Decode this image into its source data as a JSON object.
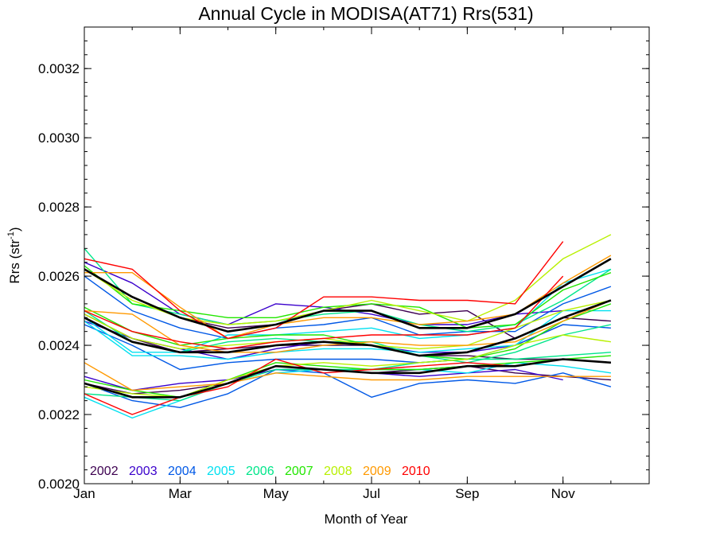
{
  "chart_data": {
    "type": "line",
    "title": "Annual Cycle in MODISA(AT71) Rrs(531)",
    "xlabel": "Month of Year",
    "ylabel_main": "Rrs (str",
    "ylabel_sup": "-1",
    "ylabel_close": ")",
    "xlim": [
      1,
      12.8
    ],
    "ylim": [
      0.002,
      0.00332
    ],
    "x_ticks": [
      {
        "value": 1,
        "label": "Jan"
      },
      {
        "value": 3,
        "label": "Mar"
      },
      {
        "value": 5,
        "label": "May"
      },
      {
        "value": 7,
        "label": "Jul"
      },
      {
        "value": 9,
        "label": "Sep"
      },
      {
        "value": 11,
        "label": "Nov"
      }
    ],
    "y_ticks": [
      {
        "value": 0.002,
        "label": "0.0020"
      },
      {
        "value": 0.0022,
        "label": "0.0022"
      },
      {
        "value": 0.0024,
        "label": "0.0024"
      },
      {
        "value": 0.0026,
        "label": "0.0026"
      },
      {
        "value": 0.0028,
        "label": "0.0028"
      },
      {
        "value": 0.003,
        "label": "0.0030"
      },
      {
        "value": 0.0032,
        "label": "0.0032"
      }
    ],
    "x": [
      1,
      2,
      3,
      4,
      5,
      6,
      7,
      8,
      9,
      10,
      11,
      12
    ],
    "legend": [
      {
        "label": "2002",
        "color": "#3d0050"
      },
      {
        "label": "2003",
        "color": "#3a00cc"
      },
      {
        "label": "2004",
        "color": "#0058e6"
      },
      {
        "label": "2005",
        "color": "#00e0f0"
      },
      {
        "label": "2006",
        "color": "#00e68a"
      },
      {
        "label": "2007",
        "color": "#22e600"
      },
      {
        "label": "2008",
        "color": "#b8f000"
      },
      {
        "label": "2009",
        "color": "#ff9900"
      },
      {
        "label": "2010",
        "color": "#ff0000"
      }
    ],
    "series": [
      {
        "group": "2002",
        "color": "#3d0050",
        "values": [
          0.00262,
          0.00254,
          0.00248,
          0.00245,
          0.00246,
          0.0025,
          0.00252,
          0.00249,
          0.0025,
          0.00242,
          0.00248,
          0.00247
        ]
      },
      {
        "group": "2002",
        "color": "#3d0050",
        "values": [
          0.00249,
          0.00242,
          0.00238,
          0.00239,
          0.0024,
          0.0024,
          0.0024,
          0.00237,
          0.00237,
          0.00236,
          0.00236,
          0.00235
        ]
      },
      {
        "group": "2002",
        "color": "#3d0050",
        "values": [
          0.00229,
          0.00226,
          0.00227,
          0.00229,
          0.00234,
          0.00233,
          0.00232,
          0.00233,
          0.00234,
          0.00232,
          0.00231,
          0.0023
        ]
      },
      {
        "group": "2003",
        "color": "#3a00cc",
        "values": [
          0.00264,
          0.00258,
          0.00249,
          0.00246,
          0.00252,
          0.00251,
          0.00249,
          0.00246,
          0.00246,
          0.00249,
          0.0025,
          null
        ]
      },
      {
        "group": "2003",
        "color": "#3a00cc",
        "values": [
          0.00247,
          0.00242,
          0.00239,
          0.00236,
          0.00239,
          0.00241,
          0.0024,
          0.00238,
          0.00238,
          0.0024,
          0.00246,
          null
        ]
      },
      {
        "group": "2003",
        "color": "#3a00cc",
        "values": [
          0.00231,
          0.00227,
          0.00229,
          0.0023,
          0.00233,
          0.00233,
          0.00232,
          0.00231,
          0.00232,
          0.00233,
          0.0023,
          null
        ]
      },
      {
        "group": "2004",
        "color": "#0058e6",
        "values": [
          0.0026,
          0.0025,
          0.00245,
          0.00242,
          0.00245,
          0.00246,
          0.00248,
          0.00243,
          0.00244,
          0.00244,
          0.00252,
          0.00257
        ]
      },
      {
        "group": "2004",
        "color": "#0058e6",
        "values": [
          0.00246,
          0.0024,
          0.00233,
          0.00235,
          0.00236,
          0.00236,
          0.00236,
          0.00235,
          0.00236,
          0.0024,
          0.00246,
          0.00245
        ]
      },
      {
        "group": "2004",
        "color": "#0058e6",
        "values": [
          0.00229,
          0.00224,
          0.00222,
          0.00226,
          0.00233,
          0.00232,
          0.00225,
          0.00229,
          0.0023,
          0.00229,
          0.00232,
          0.00228
        ]
      },
      {
        "group": "2005",
        "color": "#00e0f0",
        "values": [
          0.00248,
          0.00238,
          0.00238,
          0.00243,
          0.00243,
          0.00244,
          0.00245,
          0.00242,
          0.00243,
          0.00245,
          0.00258,
          0.00262
        ]
      },
      {
        "group": "2005",
        "color": "#00e0f0",
        "values": [
          0.00247,
          0.00237,
          0.00237,
          0.00236,
          0.00238,
          0.00239,
          0.00239,
          0.00238,
          0.00239,
          0.0024,
          0.0025,
          0.0025
        ]
      },
      {
        "group": "2005",
        "color": "#00e0f0",
        "values": [
          0.00225,
          0.00219,
          0.00224,
          0.00229,
          0.00232,
          0.00233,
          0.00233,
          0.00233,
          0.00232,
          0.00235,
          0.00234,
          0.00232
        ]
      },
      {
        "group": "2006",
        "color": "#00e68a",
        "values": [
          0.00268,
          0.00252,
          0.00249,
          0.00246,
          0.00247,
          0.00249,
          0.0025,
          0.00246,
          0.00244,
          0.00246,
          0.00253,
          0.00262
        ]
      },
      {
        "group": "2006",
        "color": "#00e68a",
        "values": [
          0.0025,
          0.00241,
          0.00238,
          0.00241,
          0.00242,
          0.00241,
          0.00241,
          0.00237,
          0.00235,
          0.00238,
          0.00243,
          0.00246
        ]
      },
      {
        "group": "2006",
        "color": "#00e68a",
        "values": [
          0.00226,
          0.00225,
          0.00224,
          0.00229,
          0.00233,
          0.00233,
          0.00233,
          0.00235,
          0.00236,
          0.00236,
          0.00237,
          0.00238
        ]
      },
      {
        "group": "2007",
        "color": "#22e600",
        "values": [
          0.00263,
          0.00252,
          0.0025,
          0.00248,
          0.00248,
          0.00251,
          0.00252,
          0.00251,
          0.00245,
          0.00246,
          0.00256,
          0.00261
        ]
      },
      {
        "group": "2007",
        "color": "#22e600",
        "values": [
          0.00251,
          0.00244,
          0.0024,
          0.00242,
          0.00243,
          0.00243,
          0.0024,
          0.00237,
          0.00236,
          0.00239,
          0.00247,
          0.00252
        ]
      },
      {
        "group": "2007",
        "color": "#22e600",
        "values": [
          0.0023,
          0.00227,
          0.00225,
          0.0023,
          0.00235,
          0.00234,
          0.00233,
          0.00233,
          0.00234,
          0.00235,
          0.00236,
          0.00237
        ]
      },
      {
        "group": "2008",
        "color": "#b8f000",
        "values": [
          0.00262,
          0.00253,
          0.00248,
          0.00246,
          0.00247,
          0.0025,
          0.00253,
          0.0025,
          0.00247,
          0.00253,
          0.00265,
          0.00272
        ]
      },
      {
        "group": "2008",
        "color": "#b8f000",
        "values": [
          0.00249,
          0.00242,
          0.00239,
          0.0024,
          0.00241,
          0.00242,
          0.0024,
          0.00239,
          0.0024,
          0.00245,
          0.0025,
          0.00253
        ]
      },
      {
        "group": "2008",
        "color": "#b8f000",
        "values": [
          0.00228,
          0.00226,
          0.00225,
          0.0023,
          0.00234,
          0.00235,
          0.00234,
          0.00235,
          0.00236,
          0.0024,
          0.00243,
          0.00241
        ]
      },
      {
        "group": "2009",
        "color": "#ff9900",
        "values": [
          0.00261,
          0.00261,
          0.00251,
          0.00242,
          0.00246,
          0.00248,
          0.00248,
          0.00246,
          0.00247,
          0.00249,
          0.00258,
          0.00266
        ]
      },
      {
        "group": "2009",
        "color": "#ff9900",
        "values": [
          0.0025,
          0.00249,
          0.0024,
          0.00238,
          0.00238,
          0.0024,
          0.00241,
          0.0024,
          0.0024,
          0.00241,
          0.00247,
          0.00253
        ]
      },
      {
        "group": "2009",
        "color": "#ff9900",
        "values": [
          0.00235,
          0.00227,
          0.00228,
          0.00229,
          0.00232,
          0.00231,
          0.0023,
          0.0023,
          0.00231,
          0.00231,
          0.00231,
          0.00231
        ]
      },
      {
        "group": "2010",
        "color": "#ff0000",
        "values": [
          0.00265,
          0.00262,
          0.0025,
          0.00242,
          0.00245,
          0.00254,
          0.00254,
          0.00253,
          0.00253,
          0.00252,
          0.0027,
          null
        ]
      },
      {
        "group": "2010",
        "color": "#ff0000",
        "values": [
          0.0025,
          0.00244,
          0.00241,
          0.00239,
          0.00241,
          0.00242,
          0.00243,
          0.00243,
          0.00243,
          0.00245,
          0.0026,
          null
        ]
      },
      {
        "group": "2010",
        "color": "#ff0000",
        "values": [
          0.00226,
          0.0022,
          0.00225,
          0.00228,
          0.00236,
          0.00232,
          0.00233,
          0.00234,
          0.00235,
          0.00234,
          0.00236,
          null
        ]
      },
      {
        "group": "mean",
        "color": "#000000",
        "width": 2.6,
        "values": [
          0.00262,
          0.00254,
          0.00248,
          0.00244,
          0.00246,
          0.0025,
          0.0025,
          0.00245,
          0.00245,
          0.00249,
          0.00257,
          0.00265
        ]
      },
      {
        "group": "mean",
        "color": "#000000",
        "width": 2.6,
        "values": [
          0.00248,
          0.00241,
          0.00238,
          0.00238,
          0.0024,
          0.00241,
          0.0024,
          0.00237,
          0.00238,
          0.00242,
          0.00248,
          0.00253
        ]
      },
      {
        "group": "mean",
        "color": "#000000",
        "width": 2.6,
        "values": [
          0.00229,
          0.00225,
          0.00225,
          0.00229,
          0.00234,
          0.00233,
          0.00232,
          0.00232,
          0.00234,
          0.00234,
          0.00236,
          0.00235
        ]
      }
    ]
  }
}
